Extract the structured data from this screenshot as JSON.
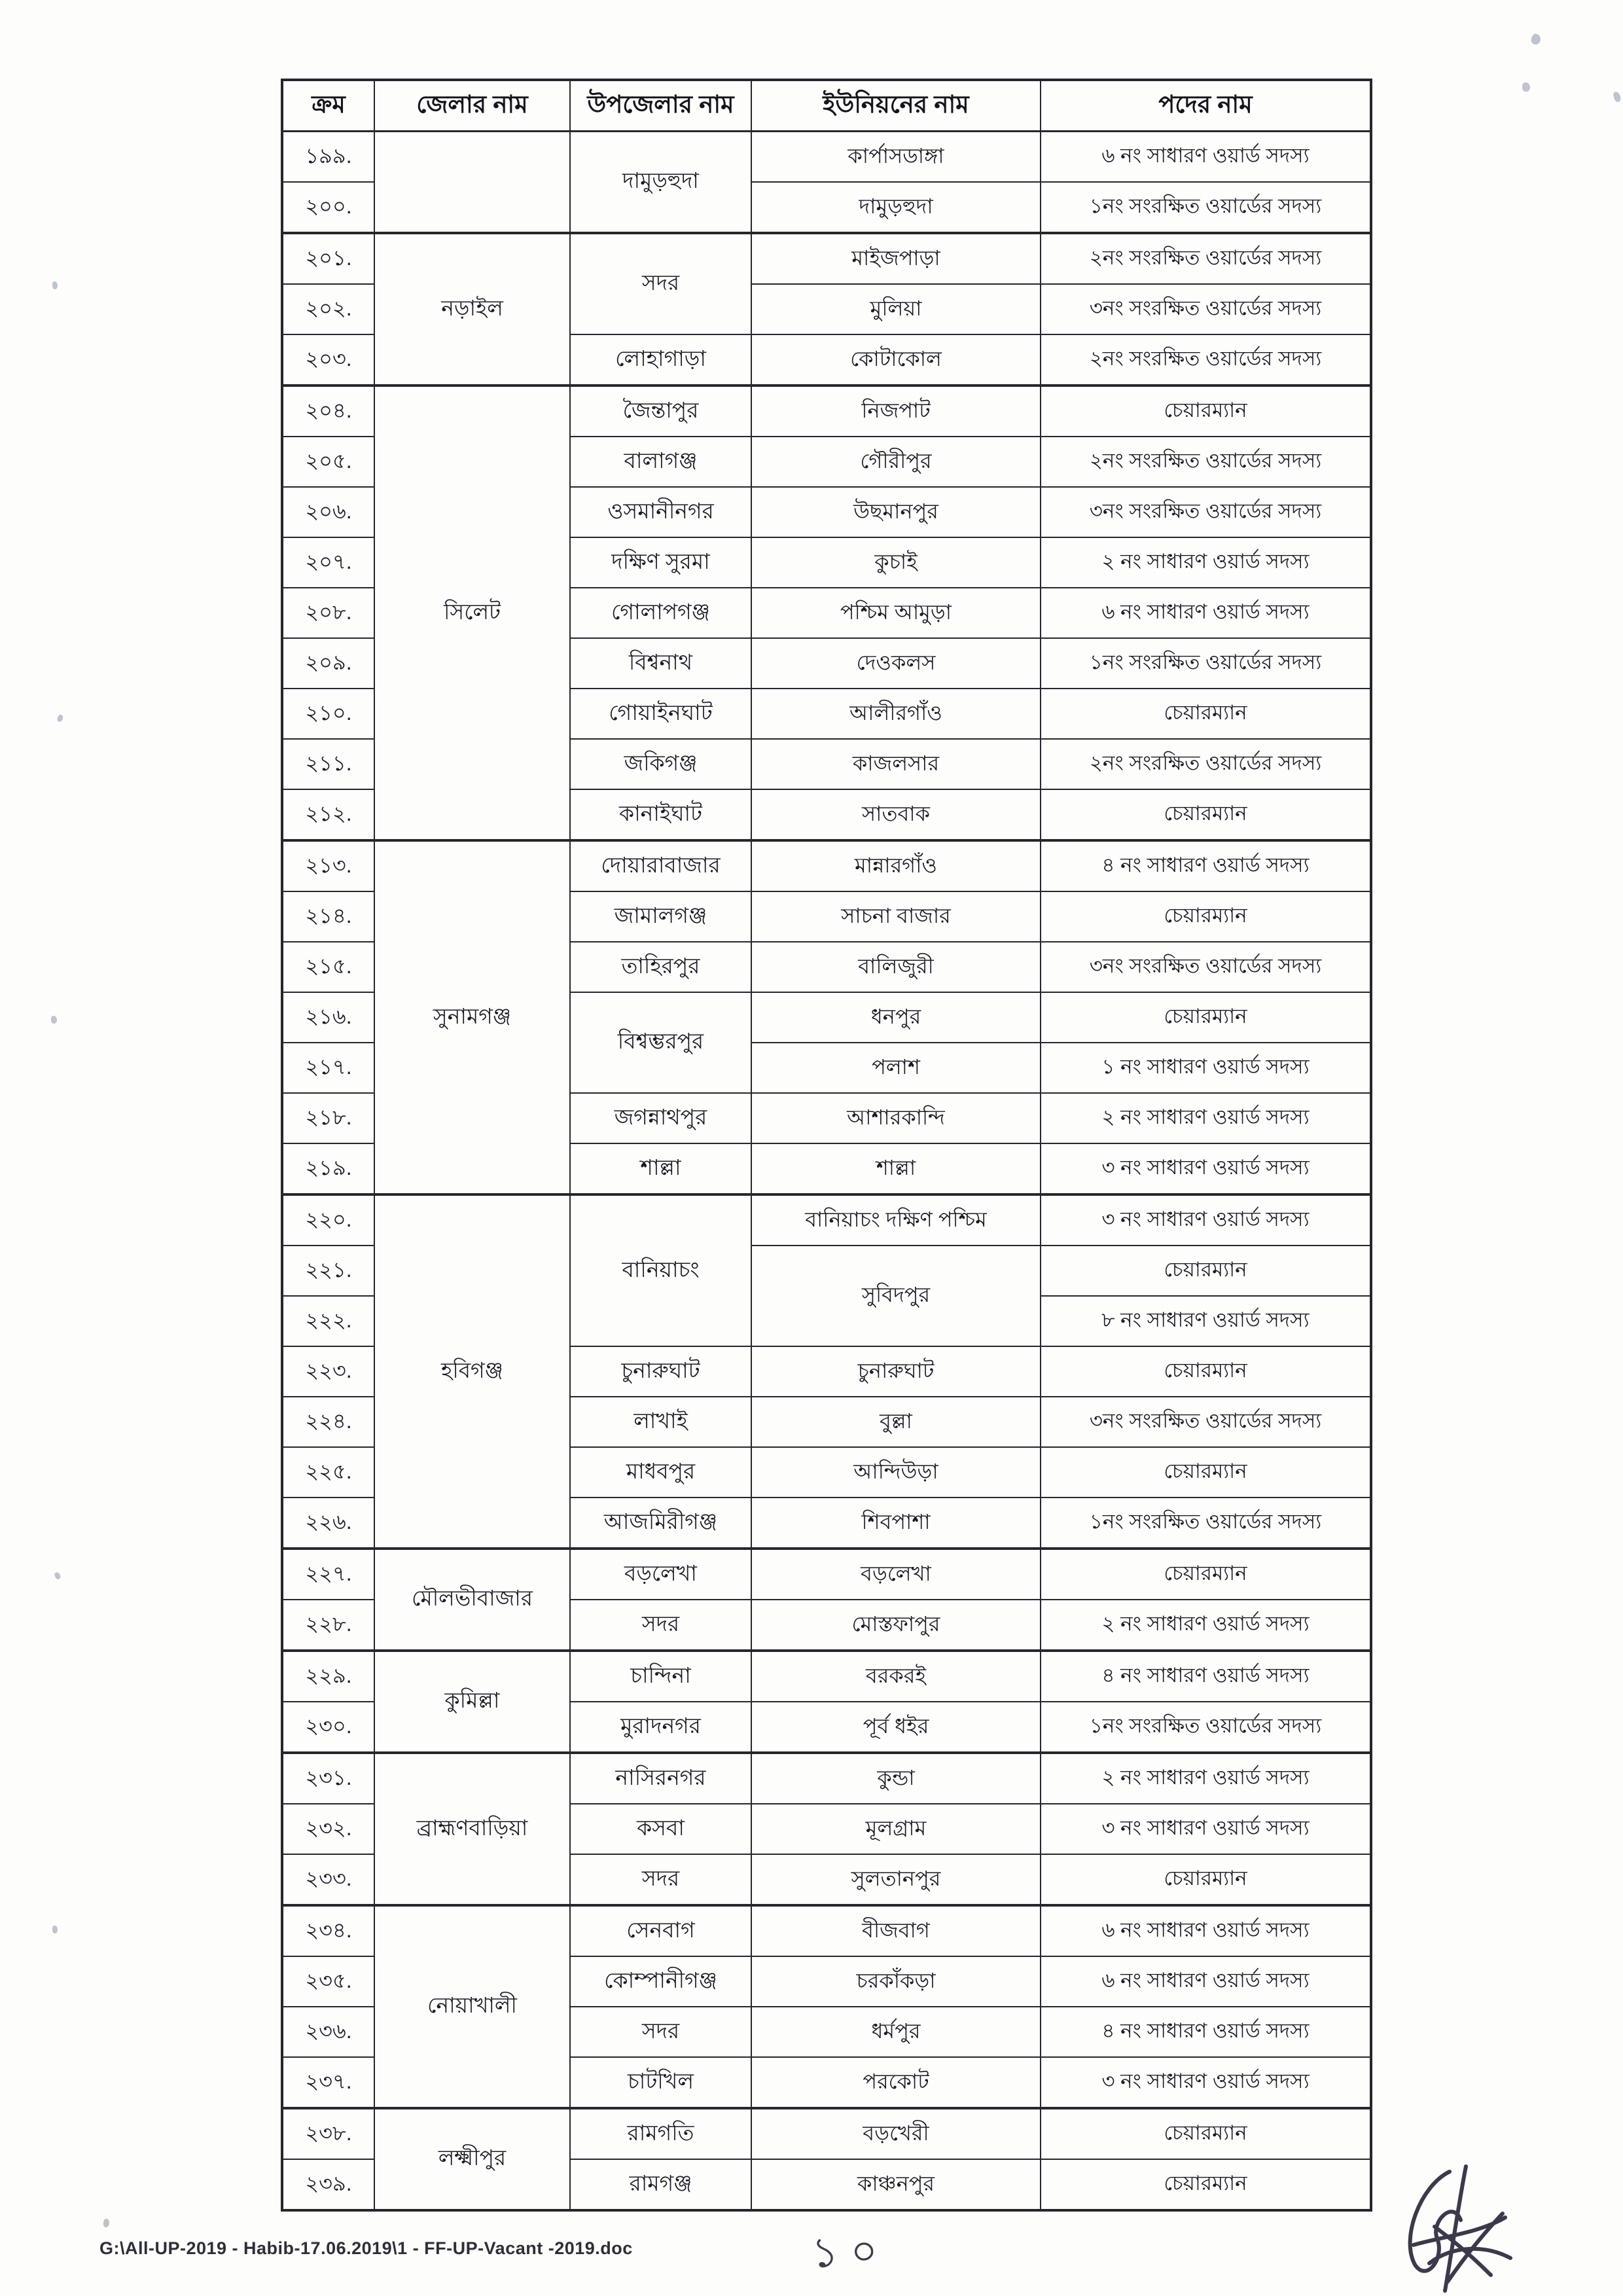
{
  "footer": {
    "path": "G:\\All-UP-2019 - Habib-17.06.2019\\1 - FF-UP-Vacant -2019.doc",
    "page_number": "১০"
  },
  "table": {
    "headers": [
      "ক্রম",
      "জেলার নাম",
      "উপজেলার নাম",
      "ইউনিয়নের নাম",
      "পদের নাম"
    ],
    "rows": [
      {
        "cells": [
          {
            "col": "serial",
            "text": "১৯৯."
          },
          {
            "col": "district",
            "text": "",
            "rowspan": 2
          },
          {
            "col": "upazila",
            "text": "দামুড়হুদা",
            "rowspan": 2
          },
          {
            "col": "union",
            "text": "কার্পাসডাঙ্গা"
          },
          {
            "col": "position",
            "text": "৬ নং সাধারণ ওয়ার্ড সদস্য"
          }
        ]
      },
      {
        "cells": [
          {
            "col": "serial",
            "text": "২০০."
          },
          {
            "col": "union",
            "text": "দামুড়হুদা"
          },
          {
            "col": "position",
            "text": "১নং সংরক্ষিত ওয়ার্ডের সদস্য"
          }
        ]
      },
      {
        "group_start": true,
        "cells": [
          {
            "col": "serial",
            "text": "২০১."
          },
          {
            "col": "district",
            "text": "নড়াইল",
            "rowspan": 3
          },
          {
            "col": "upazila",
            "text": "সদর",
            "rowspan": 2
          },
          {
            "col": "union",
            "text": "মাইজপাড়া"
          },
          {
            "col": "position",
            "text": "২নং সংরক্ষিত ওয়ার্ডের সদস্য"
          }
        ]
      },
      {
        "cells": [
          {
            "col": "serial",
            "text": "২০২."
          },
          {
            "col": "union",
            "text": "মুলিয়া"
          },
          {
            "col": "position",
            "text": "৩নং সংরক্ষিত ওয়ার্ডের সদস্য"
          }
        ]
      },
      {
        "cells": [
          {
            "col": "serial",
            "text": "২০৩."
          },
          {
            "col": "upazila",
            "text": "লোহাগাড়া"
          },
          {
            "col": "union",
            "text": "কোটাকোল"
          },
          {
            "col": "position",
            "text": "২নং সংরক্ষিত ওয়ার্ডের সদস্য"
          }
        ]
      },
      {
        "group_start": true,
        "cells": [
          {
            "col": "serial",
            "text": "২০৪."
          },
          {
            "col": "district",
            "text": "সিলেট",
            "rowspan": 9
          },
          {
            "col": "upazila",
            "text": "জৈন্তাপুর"
          },
          {
            "col": "union",
            "text": "নিজপাট"
          },
          {
            "col": "position",
            "text": "চেয়ারম্যান"
          }
        ]
      },
      {
        "cells": [
          {
            "col": "serial",
            "text": "২০৫."
          },
          {
            "col": "upazila",
            "text": "বালাগঞ্জ"
          },
          {
            "col": "union",
            "text": "গৌরীপুর"
          },
          {
            "col": "position",
            "text": "২নং সংরক্ষিত ওয়ার্ডের সদস্য"
          }
        ]
      },
      {
        "cells": [
          {
            "col": "serial",
            "text": "২০৬."
          },
          {
            "col": "upazila",
            "text": "ওসমানীনগর"
          },
          {
            "col": "union",
            "text": "উছমানপুর"
          },
          {
            "col": "position",
            "text": "৩নং সংরক্ষিত ওয়ার্ডের সদস্য"
          }
        ]
      },
      {
        "cells": [
          {
            "col": "serial",
            "text": "২০৭."
          },
          {
            "col": "upazila",
            "text": "দক্ষিণ সুরমা"
          },
          {
            "col": "union",
            "text": "কুচাই"
          },
          {
            "col": "position",
            "text": "২ নং সাধারণ ওয়ার্ড সদস্য"
          }
        ]
      },
      {
        "cells": [
          {
            "col": "serial",
            "text": "২০৮."
          },
          {
            "col": "upazila",
            "text": "গোলাপগঞ্জ"
          },
          {
            "col": "union",
            "text": "পশ্চিম আমুড়া"
          },
          {
            "col": "position",
            "text": "৬ নং সাধারণ ওয়ার্ড সদস্য"
          }
        ]
      },
      {
        "cells": [
          {
            "col": "serial",
            "text": "২০৯."
          },
          {
            "col": "upazila",
            "text": "বিশ্বনাথ"
          },
          {
            "col": "union",
            "text": "দেওকলস"
          },
          {
            "col": "position",
            "text": "১নং সংরক্ষিত ওয়ার্ডের সদস্য"
          }
        ]
      },
      {
        "cells": [
          {
            "col": "serial",
            "text": "২১০."
          },
          {
            "col": "upazila",
            "text": "গোয়াইনঘাট"
          },
          {
            "col": "union",
            "text": "আলীরগাঁও"
          },
          {
            "col": "position",
            "text": "চেয়ারম্যান"
          }
        ]
      },
      {
        "cells": [
          {
            "col": "serial",
            "text": "২১১."
          },
          {
            "col": "upazila",
            "text": "জকিগঞ্জ"
          },
          {
            "col": "union",
            "text": "কাজলসার"
          },
          {
            "col": "position",
            "text": "২নং সংরক্ষিত ওয়ার্ডের সদস্য"
          }
        ]
      },
      {
        "cells": [
          {
            "col": "serial",
            "text": "২১২."
          },
          {
            "col": "upazila",
            "text": "কানাইঘাট"
          },
          {
            "col": "union",
            "text": "সাতবাক"
          },
          {
            "col": "position",
            "text": "চেয়ারম্যান"
          }
        ]
      },
      {
        "group_start": true,
        "cells": [
          {
            "col": "serial",
            "text": "২১৩."
          },
          {
            "col": "district",
            "text": "সুনামগঞ্জ",
            "rowspan": 7
          },
          {
            "col": "upazila",
            "text": "দোয়ারাবাজার"
          },
          {
            "col": "union",
            "text": "মান্নারগাঁও"
          },
          {
            "col": "position",
            "text": "৪ নং সাধারণ ওয়ার্ড সদস্য"
          }
        ]
      },
      {
        "cells": [
          {
            "col": "serial",
            "text": "২১৪."
          },
          {
            "col": "upazila",
            "text": "জামালগঞ্জ"
          },
          {
            "col": "union",
            "text": "সাচনা বাজার"
          },
          {
            "col": "position",
            "text": "চেয়ারম্যান"
          }
        ]
      },
      {
        "cells": [
          {
            "col": "serial",
            "text": "২১৫."
          },
          {
            "col": "upazila",
            "text": "তাহিরপুর"
          },
          {
            "col": "union",
            "text": "বালিজুরী"
          },
          {
            "col": "position",
            "text": "৩নং সংরক্ষিত ওয়ার্ডের সদস্য"
          }
        ]
      },
      {
        "cells": [
          {
            "col": "serial",
            "text": "২১৬."
          },
          {
            "col": "upazila",
            "text": "বিশ্বম্ভরপুর",
            "rowspan": 2
          },
          {
            "col": "union",
            "text": "ধনপুর"
          },
          {
            "col": "position",
            "text": "চেয়ারম্যান"
          }
        ]
      },
      {
        "cells": [
          {
            "col": "serial",
            "text": "২১৭."
          },
          {
            "col": "union",
            "text": "পলাশ"
          },
          {
            "col": "position",
            "text": "১ নং সাধারণ ওয়ার্ড সদস্য"
          }
        ]
      },
      {
        "cells": [
          {
            "col": "serial",
            "text": "২১৮."
          },
          {
            "col": "upazila",
            "text": "জগন্নাথপুর"
          },
          {
            "col": "union",
            "text": "আশারকান্দি"
          },
          {
            "col": "position",
            "text": "২ নং সাধারণ ওয়ার্ড সদস্য"
          }
        ]
      },
      {
        "cells": [
          {
            "col": "serial",
            "text": "২১৯."
          },
          {
            "col": "upazila",
            "text": "শাল্লা"
          },
          {
            "col": "union",
            "text": "শাল্লা"
          },
          {
            "col": "position",
            "text": "৩ নং সাধারণ ওয়ার্ড সদস্য"
          }
        ]
      },
      {
        "group_start": true,
        "cells": [
          {
            "col": "serial",
            "text": "২২০."
          },
          {
            "col": "district",
            "text": "হবিগঞ্জ",
            "rowspan": 7
          },
          {
            "col": "upazila",
            "text": "বানিয়াচং",
            "rowspan": 3
          },
          {
            "col": "union",
            "text": "বানিয়াচং দক্ষিণ পশ্চিম"
          },
          {
            "col": "position",
            "text": "৩ নং সাধারণ ওয়ার্ড সদস্য"
          }
        ]
      },
      {
        "cells": [
          {
            "col": "serial",
            "text": "২২১."
          },
          {
            "col": "union",
            "text": "সুবিদপুর",
            "rowspan": 2
          },
          {
            "col": "position",
            "text": "চেয়ারম্যান"
          }
        ]
      },
      {
        "cells": [
          {
            "col": "serial",
            "text": "২২২."
          },
          {
            "col": "position",
            "text": "৮ নং সাধারণ ওয়ার্ড সদস্য"
          }
        ]
      },
      {
        "cells": [
          {
            "col": "serial",
            "text": "২২৩."
          },
          {
            "col": "upazila",
            "text": "চুনারুঘাট"
          },
          {
            "col": "union",
            "text": "চুনারুঘাট"
          },
          {
            "col": "position",
            "text": "চেয়ারম্যান"
          }
        ]
      },
      {
        "cells": [
          {
            "col": "serial",
            "text": "২২৪."
          },
          {
            "col": "upazila",
            "text": "লাখাই"
          },
          {
            "col": "union",
            "text": "বুল্লা"
          },
          {
            "col": "position",
            "text": "৩নং সংরক্ষিত ওয়ার্ডের সদস্য"
          }
        ]
      },
      {
        "cells": [
          {
            "col": "serial",
            "text": "২২৫."
          },
          {
            "col": "upazila",
            "text": "মাধবপুর"
          },
          {
            "col": "union",
            "text": "আন্দিউড়া"
          },
          {
            "col": "position",
            "text": "চেয়ারম্যান"
          }
        ]
      },
      {
        "cells": [
          {
            "col": "serial",
            "text": "২২৬."
          },
          {
            "col": "upazila",
            "text": "আজমিরীগঞ্জ"
          },
          {
            "col": "union",
            "text": "শিবপাশা"
          },
          {
            "col": "position",
            "text": "১নং সংরক্ষিত ওয়ার্ডের সদস্য"
          }
        ]
      },
      {
        "group_start": true,
        "cells": [
          {
            "col": "serial",
            "text": "২২৭."
          },
          {
            "col": "district",
            "text": "মৌলভীবাজার",
            "rowspan": 2
          },
          {
            "col": "upazila",
            "text": "বড়লেখা"
          },
          {
            "col": "union",
            "text": "বড়লেখা"
          },
          {
            "col": "position",
            "text": "চেয়ারম্যান"
          }
        ]
      },
      {
        "cells": [
          {
            "col": "serial",
            "text": "২২৮."
          },
          {
            "col": "upazila",
            "text": "সদর"
          },
          {
            "col": "union",
            "text": "মোস্তফাপুর"
          },
          {
            "col": "position",
            "text": "২ নং সাধারণ ওয়ার্ড সদস্য"
          }
        ]
      },
      {
        "group_start": true,
        "cells": [
          {
            "col": "serial",
            "text": "২২৯."
          },
          {
            "col": "district",
            "text": "কুমিল্লা",
            "rowspan": 2
          },
          {
            "col": "upazila",
            "text": "চান্দিনা"
          },
          {
            "col": "union",
            "text": "বরকরই"
          },
          {
            "col": "position",
            "text": "৪ নং সাধারণ ওয়ার্ড সদস্য"
          }
        ]
      },
      {
        "cells": [
          {
            "col": "serial",
            "text": "২৩০."
          },
          {
            "col": "upazila",
            "text": "মুরাদনগর"
          },
          {
            "col": "union",
            "text": "পূর্ব ধইর"
          },
          {
            "col": "position",
            "text": "১নং সংরক্ষিত ওয়ার্ডের সদস্য"
          }
        ]
      },
      {
        "group_start": true,
        "cells": [
          {
            "col": "serial",
            "text": "২৩১."
          },
          {
            "col": "district",
            "text": "ব্রাহ্মণবাড়িয়া",
            "rowspan": 3
          },
          {
            "col": "upazila",
            "text": "নাসিরনগর"
          },
          {
            "col": "union",
            "text": "কুন্ডা"
          },
          {
            "col": "position",
            "text": "২ নং সাধারণ ওয়ার্ড সদস্য"
          }
        ]
      },
      {
        "cells": [
          {
            "col": "serial",
            "text": "২৩২."
          },
          {
            "col": "upazila",
            "text": "কসবা"
          },
          {
            "col": "union",
            "text": "মূলগ্রাম"
          },
          {
            "col": "position",
            "text": "৩ নং সাধারণ ওয়ার্ড সদস্য"
          }
        ]
      },
      {
        "cells": [
          {
            "col": "serial",
            "text": "২৩৩."
          },
          {
            "col": "upazila",
            "text": "সদর"
          },
          {
            "col": "union",
            "text": "সুলতানপুর"
          },
          {
            "col": "position",
            "text": "চেয়ারম্যান"
          }
        ]
      },
      {
        "group_start": true,
        "cells": [
          {
            "col": "serial",
            "text": "২৩৪."
          },
          {
            "col": "district",
            "text": "নোয়াখালী",
            "rowspan": 4
          },
          {
            "col": "upazila",
            "text": "সেনবাগ"
          },
          {
            "col": "union",
            "text": "বীজবাগ"
          },
          {
            "col": "position",
            "text": "৬ নং সাধারণ ওয়ার্ড সদস্য"
          }
        ]
      },
      {
        "cells": [
          {
            "col": "serial",
            "text": "২৩৫."
          },
          {
            "col": "upazila",
            "text": "কোম্পানীগঞ্জ"
          },
          {
            "col": "union",
            "text": "চরকাঁকড়া"
          },
          {
            "col": "position",
            "text": "৬ নং সাধারণ ওয়ার্ড সদস্য"
          }
        ]
      },
      {
        "cells": [
          {
            "col": "serial",
            "text": "২৩৬."
          },
          {
            "col": "upazila",
            "text": "সদর"
          },
          {
            "col": "union",
            "text": "ধর্মপুর"
          },
          {
            "col": "position",
            "text": "৪ নং সাধারণ ওয়ার্ড সদস্য"
          }
        ]
      },
      {
        "cells": [
          {
            "col": "serial",
            "text": "২৩৭."
          },
          {
            "col": "upazila",
            "text": "চাটখিল"
          },
          {
            "col": "union",
            "text": "পরকোট"
          },
          {
            "col": "position",
            "text": "৩ নং সাধারণ ওয়ার্ড সদস্য"
          }
        ]
      },
      {
        "group_start": true,
        "cells": [
          {
            "col": "serial",
            "text": "২৩৮."
          },
          {
            "col": "district",
            "text": "লক্ষ্মীপুর",
            "rowspan": 2
          },
          {
            "col": "upazila",
            "text": "রামগতি"
          },
          {
            "col": "union",
            "text": "বড়খেরী"
          },
          {
            "col": "position",
            "text": "চেয়ারম্যান"
          }
        ]
      },
      {
        "cells": [
          {
            "col": "serial",
            "text": "২৩৯."
          },
          {
            "col": "upazila",
            "text": "রামগঞ্জ"
          },
          {
            "col": "union",
            "text": "কাঞ্চনপুর"
          },
          {
            "col": "position",
            "text": "চেয়ারম্যান"
          }
        ]
      }
    ]
  }
}
